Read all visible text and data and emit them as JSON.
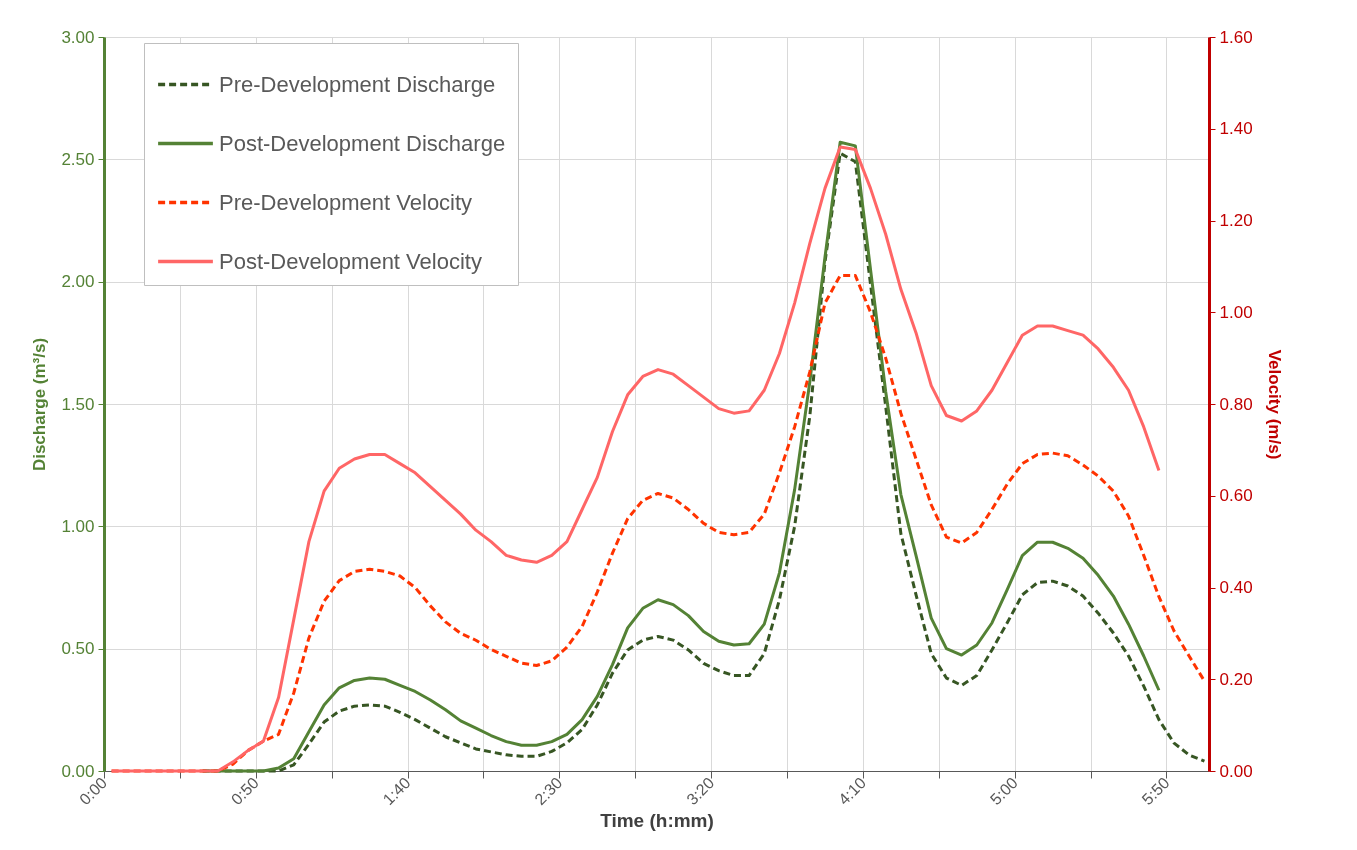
{
  "chart_data": {
    "type": "line",
    "xlabel": "Time (h:mm)",
    "ylabel": "Discharge (m³/s)",
    "y2label": "Velocity (m/s)",
    "x": [
      0.0417,
      0.125,
      0.2083,
      0.2917,
      0.375,
      0.4583,
      0.5417,
      0.625,
      0.7083,
      0.7917,
      0.875,
      0.9583,
      1.0417,
      1.125,
      1.2083,
      1.2917,
      1.375,
      1.4583,
      1.5417,
      1.625,
      1.7083,
      1.7917,
      1.875,
      1.9583,
      2.0417,
      2.125,
      2.2083,
      2.2917,
      2.375,
      2.4583,
      2.5417,
      2.625,
      2.7083,
      2.7917,
      2.875,
      2.9583,
      3.0417,
      3.125,
      3.2083,
      3.2917,
      3.375,
      3.4583,
      3.5417,
      3.625,
      3.7083,
      3.7917,
      3.875,
      3.9583,
      4.0417,
      4.125,
      4.2083,
      4.2917,
      4.375,
      4.4583,
      4.5417,
      4.625,
      4.7083,
      4.7917,
      4.875,
      4.9583,
      5.0417,
      5.125,
      5.2083,
      5.2917,
      5.375,
      5.4583,
      5.5417,
      5.625,
      5.7083,
      5.7917,
      5.875,
      5.9583,
      6.0417
    ],
    "series": [
      {
        "name": "Pre-Development Discharge",
        "color": "#375623",
        "line_style": "dashed",
        "values": [
          null,
          null,
          null,
          null,
          null,
          null,
          0,
          0,
          0,
          0,
          0,
          0,
          0.025,
          0.11,
          0.2,
          0.245,
          0.265,
          0.27,
          0.265,
          0.24,
          0.21,
          0.175,
          0.14,
          0.115,
          0.09,
          0.078,
          0.066,
          0.06,
          0.06,
          0.08,
          0.115,
          0.17,
          0.27,
          0.4,
          0.495,
          0.535,
          0.55,
          0.535,
          0.495,
          0.44,
          0.41,
          0.39,
          0.39,
          0.48,
          0.7,
          1.0,
          1.45,
          2.08,
          2.525,
          2.49,
          1.99,
          1.49,
          0.97,
          0.72,
          0.48,
          0.38,
          0.35,
          0.39,
          0.495,
          0.605,
          0.72,
          0.77,
          0.776,
          0.756,
          0.715,
          0.645,
          0.564,
          0.47,
          0.347,
          0.21,
          0.114,
          0.065,
          0.04
        ]
      },
      {
        "name": "Post-Development Discharge",
        "color": "#548235",
        "line_style": "solid",
        "values": [
          null,
          null,
          null,
          null,
          null,
          null,
          0,
          0,
          0,
          0,
          0,
          0.012,
          0.05,
          0.16,
          0.27,
          0.34,
          0.37,
          0.38,
          0.375,
          0.35,
          0.325,
          0.29,
          0.25,
          0.205,
          0.175,
          0.145,
          0.12,
          0.105,
          0.105,
          0.12,
          0.15,
          0.21,
          0.305,
          0.435,
          0.585,
          0.665,
          0.7,
          0.68,
          0.635,
          0.57,
          0.53,
          0.515,
          0.52,
          0.6,
          0.81,
          1.15,
          1.59,
          2.1,
          2.57,
          2.555,
          2.05,
          1.55,
          1.13,
          0.88,
          0.625,
          0.5,
          0.474,
          0.515,
          0.605,
          0.74,
          0.88,
          0.935,
          0.935,
          0.91,
          0.87,
          0.8,
          0.715,
          0.6,
          0.47,
          0.33,
          null,
          null,
          null
        ]
      },
      {
        "name": "Pre-Development Velocity",
        "color": "#ff3300",
        "line_style": "dashed",
        "axis": "y2",
        "values": [
          0,
          0,
          0,
          0,
          0,
          0,
          0,
          0,
          0.015,
          0.045,
          0.065,
          0.08,
          0.17,
          0.29,
          0.37,
          0.415,
          0.435,
          0.44,
          0.435,
          0.425,
          0.4,
          0.36,
          0.325,
          0.3,
          0.285,
          0.265,
          0.25,
          0.235,
          0.23,
          0.24,
          0.27,
          0.315,
          0.39,
          0.475,
          0.55,
          0.59,
          0.605,
          0.595,
          0.57,
          0.54,
          0.52,
          0.515,
          0.52,
          0.56,
          0.65,
          0.75,
          0.87,
          1.02,
          1.08,
          1.08,
          1.0,
          0.9,
          0.78,
          0.68,
          0.58,
          0.51,
          0.497,
          0.52,
          0.57,
          0.625,
          0.67,
          0.69,
          0.693,
          0.687,
          0.667,
          0.643,
          0.61,
          0.556,
          0.47,
          0.38,
          0.305,
          0.25,
          0.196
        ]
      },
      {
        "name": "Post-Development Velocity",
        "color": "#ff6666",
        "line_style": "solid",
        "axis": "y2",
        "values": [
          0,
          0,
          0,
          0,
          0,
          0,
          0,
          0,
          0.02,
          0.045,
          0.065,
          0.16,
          0.33,
          0.5,
          0.61,
          0.66,
          0.68,
          0.69,
          0.69,
          0.67,
          0.65,
          0.62,
          0.59,
          0.56,
          0.525,
          0.5,
          0.47,
          0.46,
          0.455,
          0.47,
          0.5,
          0.57,
          0.64,
          0.74,
          0.82,
          0.86,
          0.875,
          0.865,
          0.84,
          0.815,
          0.79,
          0.78,
          0.785,
          0.83,
          0.91,
          1.02,
          1.15,
          1.27,
          1.36,
          1.355,
          1.27,
          1.17,
          1.05,
          0.955,
          0.84,
          0.775,
          0.763,
          0.785,
          0.83,
          0.89,
          0.95,
          0.97,
          0.97,
          0.96,
          0.95,
          0.92,
          0.88,
          0.83,
          0.75,
          0.655,
          null,
          null,
          null
        ]
      }
    ],
    "xlim": [
      0,
      6.0667
    ],
    "xticks": [
      {
        "value": 0,
        "label": "0:00"
      },
      {
        "value": 0.4167,
        "label": null
      },
      {
        "value": 0.8333,
        "label": "0:50"
      },
      {
        "value": 1.25,
        "label": null
      },
      {
        "value": 1.6667,
        "label": "1:40"
      },
      {
        "value": 2.0833,
        "label": null
      },
      {
        "value": 2.5,
        "label": "2:30"
      },
      {
        "value": 2.9167,
        "label": null
      },
      {
        "value": 3.3333,
        "label": "3:20"
      },
      {
        "value": 3.75,
        "label": null
      },
      {
        "value": 4.1667,
        "label": "4:10"
      },
      {
        "value": 4.5833,
        "label": null
      },
      {
        "value": 5,
        "label": "5:00"
      },
      {
        "value": 5.4167,
        "label": null
      },
      {
        "value": 5.8333,
        "label": "5:50"
      }
    ],
    "ylim": [
      0,
      3
    ],
    "yticks": [
      {
        "value": 0,
        "label": "0.00"
      },
      {
        "value": 0.5,
        "label": "0.50"
      },
      {
        "value": 1,
        "label": "1.00"
      },
      {
        "value": 1.5,
        "label": "1.50"
      },
      {
        "value": 2,
        "label": "2.00"
      },
      {
        "value": 2.5,
        "label": "2.50"
      },
      {
        "value": 3,
        "label": "3.00"
      }
    ],
    "y2lim": [
      0,
      1.6
    ],
    "y2ticks": [
      {
        "value": 0,
        "label": "0.00"
      },
      {
        "value": 0.2,
        "label": "0.20"
      },
      {
        "value": 0.4,
        "label": "0.40"
      },
      {
        "value": 0.6,
        "label": "0.60"
      },
      {
        "value": 0.8,
        "label": "0.80"
      },
      {
        "value": 1,
        "label": "1.00"
      },
      {
        "value": 1.2,
        "label": "1.20"
      },
      {
        "value": 1.4,
        "label": "1.40"
      },
      {
        "value": 1.6,
        "label": "1.60"
      }
    ],
    "grid": true,
    "legend": "top left"
  }
}
